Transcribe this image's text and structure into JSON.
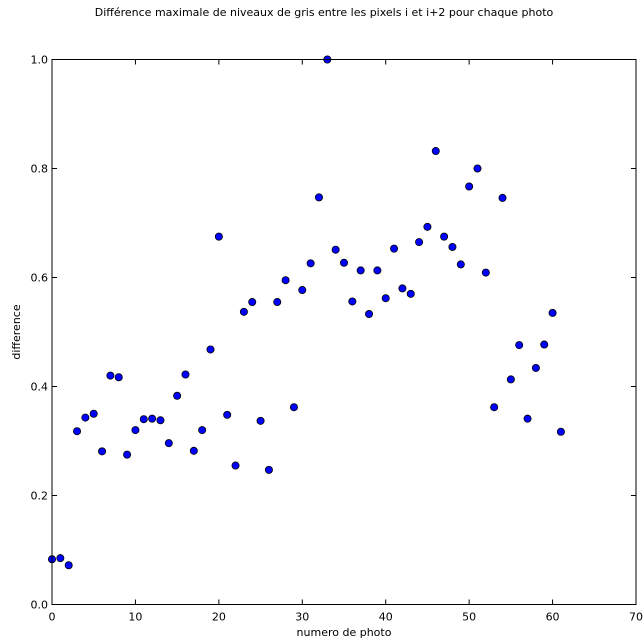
{
  "chart_data": {
    "type": "scatter",
    "title": "Différence maximale de niveaux de gris entre les pixels i et i+2 pour chaque photo",
    "xlabel": "numero de photo",
    "ylabel": "difference",
    "xlim": [
      0,
      70
    ],
    "ylim": [
      0.0,
      1.0
    ],
    "xticks": [
      0,
      10,
      20,
      30,
      40,
      50,
      60,
      70
    ],
    "xtick_labels": [
      "0",
      "10",
      "20",
      "30",
      "40",
      "50",
      "60",
      "70"
    ],
    "yticks": [
      0.0,
      0.2,
      0.4,
      0.6,
      0.8,
      1.0
    ],
    "ytick_labels": [
      "0.0",
      "0.2",
      "0.4",
      "0.6",
      "0.8",
      "1.0"
    ],
    "grid": false,
    "marker_color": "#0000ff",
    "x": [
      0,
      1,
      2,
      3,
      4,
      5,
      6,
      7,
      8,
      9,
      10,
      11,
      12,
      13,
      14,
      15,
      16,
      17,
      18,
      19,
      20,
      21,
      22,
      23,
      24,
      25,
      26,
      27,
      28,
      29,
      30,
      31,
      32,
      33,
      34,
      35,
      36,
      37,
      38,
      39,
      40,
      41,
      42,
      43,
      44,
      45,
      46,
      47,
      48,
      49,
      50,
      51,
      52,
      53,
      54,
      55,
      56,
      57,
      58,
      59,
      60,
      61
    ],
    "y": [
      0.083,
      0.085,
      0.072,
      0.318,
      0.343,
      0.35,
      0.281,
      0.42,
      0.417,
      0.275,
      0.32,
      0.34,
      0.341,
      0.338,
      0.296,
      0.383,
      0.422,
      0.282,
      0.32,
      0.468,
      0.675,
      0.348,
      0.255,
      0.537,
      0.555,
      0.337,
      0.247,
      0.555,
      0.595,
      0.362,
      0.577,
      0.626,
      0.747,
      1.0,
      0.651,
      0.627,
      0.556,
      0.613,
      0.533,
      0.613,
      0.562,
      0.653,
      0.58,
      0.57,
      0.665,
      0.693,
      0.832,
      0.675,
      0.656,
      0.624,
      0.767,
      0.8,
      0.609,
      0.362,
      0.746,
      0.413,
      0.476,
      0.341,
      0.434,
      0.477,
      0.535,
      0.317
    ]
  }
}
